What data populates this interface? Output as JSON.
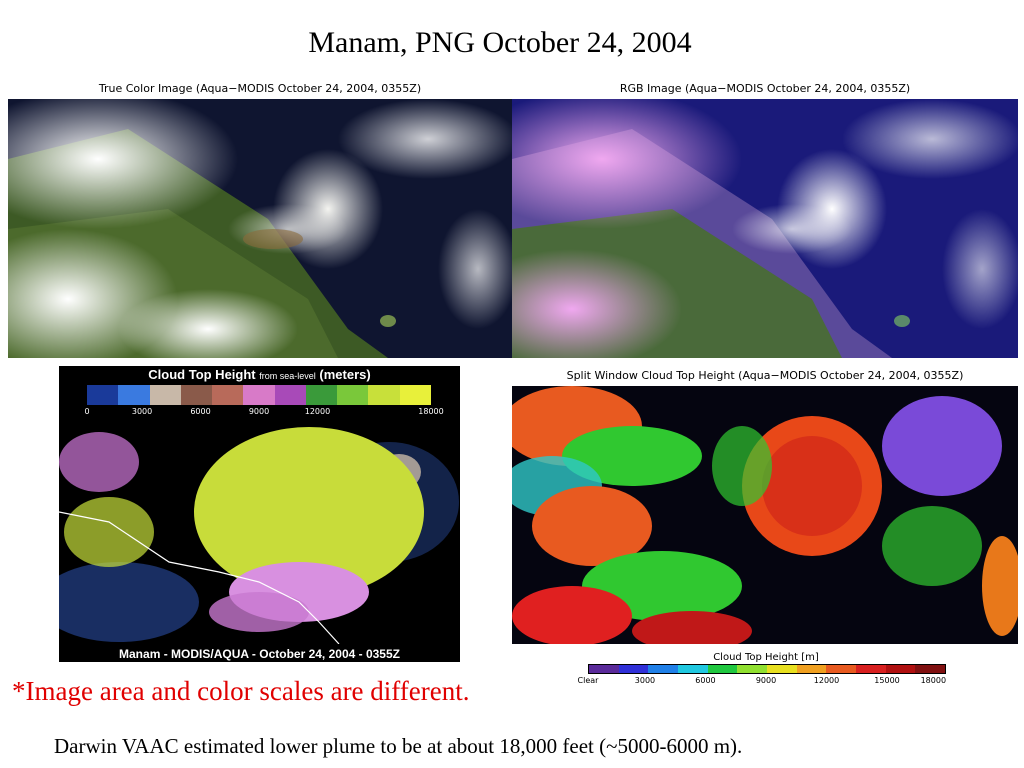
{
  "title": "Manam, PNG October 24, 2004",
  "panels": {
    "true_color": {
      "caption": "True Color Image (Aqua−MODIS October 24, 2004, 0355Z)"
    },
    "rgb": {
      "caption": "RGB Image (Aqua−MODIS October 24, 2004, 0355Z)"
    },
    "cloud_top": {
      "legend_title": "Cloud Top Height",
      "legend_sub": "from sea-level",
      "legend_units": "(meters)",
      "ticks": [
        "0",
        "3000",
        "6000",
        "9000",
        "12000",
        "18000"
      ],
      "bottom_caption": "Manam - MODIS/AQUA - October 24, 2004 - 0355Z"
    },
    "split_window": {
      "caption": "Split Window Cloud Top Height (Aqua−MODIS October 24, 2004, 0355Z)",
      "scale_title": "Cloud Top Height [m]",
      "ticks": [
        "Clear",
        "3000",
        "6000",
        "9000",
        "12000",
        "15000",
        "18000"
      ]
    }
  },
  "note": "*Image area and color scales are different.",
  "footer": "Darwin VAAC estimated lower plume to be at about 18,000 feet (~5000-6000 m)."
}
